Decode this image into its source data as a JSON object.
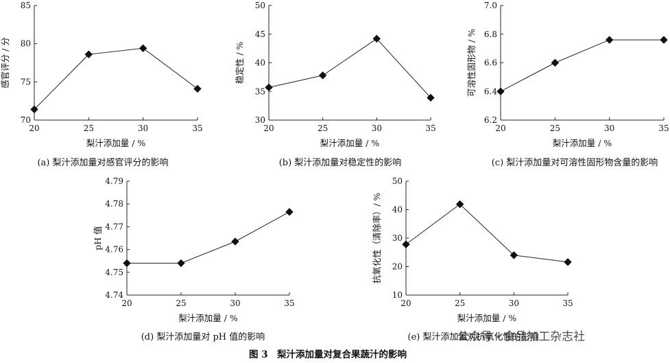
{
  "figure_title": "图 3　梨汁添加量对复合果蔬汁的影响",
  "watermark": "公众号 · 食品加工杂志社",
  "chart_data": [
    {
      "id": "a",
      "type": "line",
      "caption": "(a)  梨汁添加量对感官评分的影响",
      "xlabel": "梨汁添加量 / %",
      "ylabel": "感官评分 / 分",
      "x": [
        20,
        25,
        30,
        35
      ],
      "values": [
        71.4,
        78.6,
        79.4,
        74.1
      ],
      "xlim": [
        20,
        35
      ],
      "ylim": [
        70,
        85
      ],
      "xticks": [
        "20",
        "25",
        "30",
        "35"
      ],
      "yticks": [
        "70",
        "75",
        "80",
        "85"
      ],
      "grid": false,
      "marker": "diamond"
    },
    {
      "id": "b",
      "type": "line",
      "caption": "(b)  梨汁添加量对稳定性的影响",
      "xlabel": "梨汁添加量 / %",
      "ylabel": "稳定性 / %",
      "x": [
        20,
        25,
        30,
        35
      ],
      "values": [
        35.7,
        37.8,
        44.2,
        33.9
      ],
      "xlim": [
        20,
        35
      ],
      "ylim": [
        30,
        50
      ],
      "xticks": [
        "20",
        "25",
        "30",
        "35"
      ],
      "yticks": [
        "30",
        "35",
        "40",
        "45",
        "50"
      ],
      "grid": false,
      "marker": "diamond"
    },
    {
      "id": "c",
      "type": "line",
      "caption": "(c)  梨汁添加量对可溶性固形物含量的影响",
      "xlabel": "梨汁添加量 / %",
      "ylabel": "可溶性固形物 / %",
      "x": [
        20,
        25,
        30,
        35
      ],
      "values": [
        6.4,
        6.6,
        6.76,
        6.76
      ],
      "xlim": [
        20,
        35
      ],
      "ylim": [
        6.2,
        7.0
      ],
      "xticks": [
        "20",
        "25",
        "30",
        "35"
      ],
      "yticks": [
        "6.2",
        "6.4",
        "6.6",
        "6.8",
        "7.0"
      ],
      "grid": false,
      "marker": "diamond"
    },
    {
      "id": "d",
      "type": "line",
      "caption": "(d)  梨汁添加量对 pH 值的影响",
      "xlabel": "梨汁添加量 / %",
      "ylabel": "pH 值",
      "x": [
        20,
        25,
        30,
        35
      ],
      "values": [
        4.754,
        4.754,
        4.7635,
        4.7765
      ],
      "xlim": [
        20,
        35
      ],
      "ylim": [
        4.74,
        4.79
      ],
      "xticks": [
        "20",
        "25",
        "30",
        "35"
      ],
      "yticks": [
        "4.74",
        "4.75",
        "4.76",
        "4.77",
        "4.78",
        "4.79"
      ],
      "grid": false,
      "marker": "diamond"
    },
    {
      "id": "e",
      "type": "line",
      "caption": "(e)  梨汁添加量对抗氧化性的影响",
      "xlabel": "梨汁添加量 / %",
      "ylabel": "抗氧化性（清除率）/ %",
      "x": [
        20,
        25,
        30,
        35
      ],
      "values": [
        27.8,
        41.9,
        24.0,
        21.6
      ],
      "xlim": [
        20,
        35
      ],
      "ylim": [
        10,
        50
      ],
      "xticks": [
        "20",
        "25",
        "30",
        "35"
      ],
      "yticks": [
        "10",
        "20",
        "30",
        "40",
        "50"
      ],
      "grid": false,
      "marker": "diamond"
    }
  ]
}
